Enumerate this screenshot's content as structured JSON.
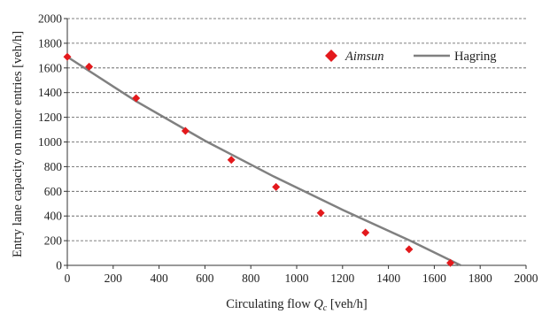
{
  "chart_data": {
    "type": "scatter",
    "title": "",
    "xlabel": "Circulating flow",
    "xlabel_symbol": "Q",
    "xlabel_sub": "c",
    "xlabel_unit": "[veh/h]",
    "ylabel": "Entry lane capacity on minor entries [veh/h]",
    "xlim": [
      0,
      2000
    ],
    "ylim": [
      0,
      2000
    ],
    "x_ticks": [
      0,
      200,
      400,
      600,
      800,
      1000,
      1200,
      1400,
      1600,
      1800,
      2000
    ],
    "y_ticks": [
      0,
      200,
      400,
      600,
      800,
      1000,
      1200,
      1400,
      1600,
      1800,
      2000
    ],
    "grid": "horizontal-dashed",
    "legend_position": "top-right",
    "series": [
      {
        "name": "Aimsun",
        "kind": "scatter",
        "marker": "diamond",
        "color": "#e3191c",
        "points": [
          [
            0,
            1690
          ],
          [
            95,
            1610
          ],
          [
            300,
            1355
          ],
          [
            515,
            1090
          ],
          [
            715,
            855
          ],
          [
            910,
            635
          ],
          [
            1105,
            425
          ],
          [
            1300,
            265
          ],
          [
            1490,
            130
          ],
          [
            1670,
            20
          ]
        ]
      },
      {
        "name": "Hagring",
        "kind": "line",
        "color": "#808080",
        "points": [
          [
            0,
            1690
          ],
          [
            300,
            1330
          ],
          [
            600,
            1010
          ],
          [
            900,
            720
          ],
          [
            1200,
            450
          ],
          [
            1500,
            195
          ],
          [
            1715,
            0
          ]
        ]
      }
    ]
  }
}
